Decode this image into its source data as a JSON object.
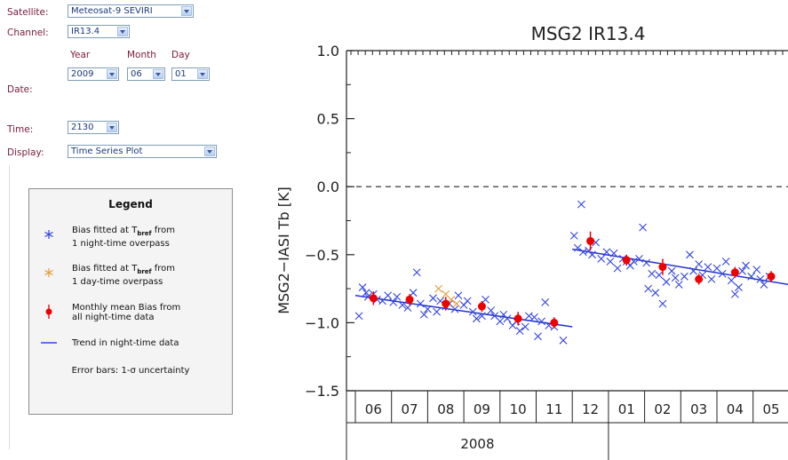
{
  "form": {
    "satellite_label": "Satellite:",
    "satellite_value": "Meteosat-9 SEVIRI",
    "channel_label": "Channel:",
    "channel_value": "IR13.4",
    "date_label": "Date:",
    "year_header": "Year",
    "month_header": "Month",
    "day_header": "Day",
    "year_value": "2009",
    "month_value": "06",
    "day_value": "01",
    "time_label": "Time:",
    "time_value": "2130",
    "display_label": "Display:",
    "display_value": "Time Series Plot"
  },
  "legend": {
    "title": "Legend",
    "items": [
      {
        "line1": "Bias fitted at T",
        "sub": "bref",
        "line1b": " from",
        "line2": "1 night-time overpass",
        "color": "#3344dd"
      },
      {
        "line1": "Bias fitted at T",
        "sub": "bref",
        "line1b": " from",
        "line2": "1 day-time overpass",
        "color": "#e89a3a"
      },
      {
        "line1": "Monthly mean Bias from",
        "line2": "all night-time data",
        "color": "#ee0000"
      },
      {
        "line1": "Trend in night-time data",
        "color": "#3344dd"
      }
    ],
    "error_bars": "Error bars: 1-σ uncertainty"
  },
  "chart_data": {
    "type": "scatter",
    "title": "MSG2  IR13.4",
    "ylabel": "MSG2−IASI Tb [K]",
    "ylim": [
      -1.5,
      1.0
    ],
    "yticks": [
      1.0,
      0.5,
      0.0,
      -0.5,
      -1.0,
      -1.5
    ],
    "ytick_labels": [
      "1.0",
      "0.5",
      "0.0",
      "−0.5",
      "−1.0",
      "−1.5"
    ],
    "x_month_labels": [
      "06",
      "07",
      "08",
      "09",
      "10",
      "11",
      "12",
      "01",
      "02",
      "03",
      "04",
      "05"
    ],
    "x_year_label": "2008",
    "reference_line": 0.0,
    "night_points": [
      [
        0.1,
        -0.95
      ],
      [
        0.2,
        -0.74
      ],
      [
        0.3,
        -0.78
      ],
      [
        0.35,
        -0.81
      ],
      [
        0.5,
        -0.79
      ],
      [
        0.6,
        -0.83
      ],
      [
        0.75,
        -0.84
      ],
      [
        0.9,
        -0.8
      ],
      [
        1.05,
        -0.85
      ],
      [
        1.15,
        -0.81
      ],
      [
        1.3,
        -0.87
      ],
      [
        1.45,
        -0.89
      ],
      [
        1.6,
        -0.78
      ],
      [
        1.7,
        -0.63
      ],
      [
        1.8,
        -0.86
      ],
      [
        1.9,
        -0.94
      ],
      [
        2.0,
        -0.9
      ],
      [
        2.15,
        -0.82
      ],
      [
        2.25,
        -0.92
      ],
      [
        2.35,
        -0.84
      ],
      [
        2.5,
        -0.88
      ],
      [
        2.6,
        -0.86
      ],
      [
        2.75,
        -0.9
      ],
      [
        2.85,
        -0.8
      ],
      [
        3.0,
        -0.87
      ],
      [
        3.1,
        -0.84
      ],
      [
        3.25,
        -0.92
      ],
      [
        3.35,
        -0.97
      ],
      [
        3.5,
        -0.95
      ],
      [
        3.6,
        -0.83
      ],
      [
        3.75,
        -0.91
      ],
      [
        3.85,
        -0.95
      ],
      [
        4.0,
        -0.99
      ],
      [
        4.1,
        -0.94
      ],
      [
        4.2,
        -0.97
      ],
      [
        4.35,
        -1.02
      ],
      [
        4.45,
        -0.99
      ],
      [
        4.55,
        -1.06
      ],
      [
        4.7,
        -1.03
      ],
      [
        4.8,
        -0.95
      ],
      [
        4.95,
        -0.96
      ],
      [
        5.05,
        -1.1
      ],
      [
        5.15,
        -0.99
      ],
      [
        5.25,
        -0.85
      ],
      [
        5.35,
        -1.02
      ],
      [
        5.5,
        -1.03
      ],
      [
        5.75,
        -1.13
      ],
      [
        6.05,
        -0.36
      ],
      [
        6.15,
        -0.45
      ],
      [
        6.25,
        -0.13
      ],
      [
        6.3,
        -0.48
      ],
      [
        6.45,
        -0.47
      ],
      [
        6.55,
        -0.5
      ],
      [
        6.65,
        -0.41
      ],
      [
        6.8,
        -0.53
      ],
      [
        6.95,
        -0.48
      ],
      [
        7.05,
        -0.55
      ],
      [
        7.15,
        -0.49
      ],
      [
        7.25,
        -0.6
      ],
      [
        7.4,
        -0.53
      ],
      [
        7.5,
        -0.55
      ],
      [
        7.6,
        -0.58
      ],
      [
        7.7,
        -0.55
      ],
      [
        7.85,
        -0.53
      ],
      [
        7.95,
        -0.3
      ],
      [
        8.05,
        -0.56
      ],
      [
        8.1,
        -0.75
      ],
      [
        8.2,
        -0.64
      ],
      [
        8.3,
        -0.78
      ],
      [
        8.4,
        -0.65
      ],
      [
        8.5,
        -0.86
      ],
      [
        8.6,
        -0.7
      ],
      [
        8.75,
        -0.62
      ],
      [
        8.85,
        -0.67
      ],
      [
        8.95,
        -0.72
      ],
      [
        9.1,
        -0.66
      ],
      [
        9.25,
        -0.5
      ],
      [
        9.35,
        -0.62
      ],
      [
        9.5,
        -0.57
      ],
      [
        9.6,
        -0.65
      ],
      [
        9.75,
        -0.59
      ],
      [
        9.85,
        -0.68
      ],
      [
        10.0,
        -0.6
      ],
      [
        10.15,
        -0.64
      ],
      [
        10.25,
        -0.55
      ],
      [
        10.4,
        -0.69
      ],
      [
        10.5,
        -0.79
      ],
      [
        10.6,
        -0.74
      ],
      [
        10.7,
        -0.62
      ],
      [
        10.8,
        -0.58
      ],
      [
        10.95,
        -0.66
      ],
      [
        11.1,
        -0.61
      ],
      [
        11.2,
        -0.68
      ],
      [
        11.3,
        -0.72
      ],
      [
        11.45,
        -0.66
      ]
    ],
    "day_points": [
      [
        2.3,
        -0.75
      ],
      [
        2.5,
        -0.79
      ],
      [
        2.65,
        -0.83
      ],
      [
        2.8,
        -0.86
      ]
    ],
    "monthly_means": [
      {
        "x": 0.5,
        "y": -0.82,
        "err": 0.05
      },
      {
        "x": 1.5,
        "y": -0.83,
        "err": 0.04
      },
      {
        "x": 2.5,
        "y": -0.86,
        "err": 0.05
      },
      {
        "x": 3.5,
        "y": -0.88,
        "err": 0.04
      },
      {
        "x": 4.5,
        "y": -0.97,
        "err": 0.05
      },
      {
        "x": 5.5,
        "y": -1.0,
        "err": 0.04
      },
      {
        "x": 6.5,
        "y": -0.4,
        "err": 0.07
      },
      {
        "x": 7.5,
        "y": -0.54,
        "err": 0.04
      },
      {
        "x": 8.5,
        "y": -0.59,
        "err": 0.06
      },
      {
        "x": 9.5,
        "y": -0.68,
        "err": 0.04
      },
      {
        "x": 10.5,
        "y": -0.63,
        "err": 0.04
      },
      {
        "x": 11.5,
        "y": -0.66,
        "err": 0.04
      }
    ],
    "trends": [
      {
        "x0": 0.0,
        "y0": -0.8,
        "x1": 6.0,
        "y1": -1.03
      },
      {
        "x0": 6.0,
        "y0": -0.46,
        "x1": 12.0,
        "y1": -0.72
      }
    ]
  }
}
